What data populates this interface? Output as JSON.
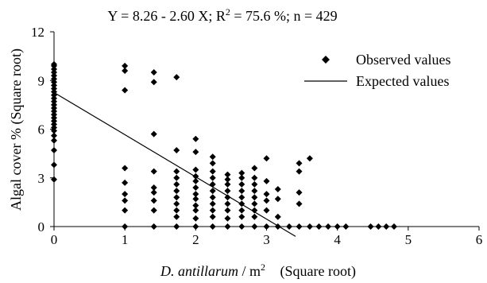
{
  "chart_data": {
    "type": "scatter",
    "title_parts": {
      "pre": "Y = 8.26 - 2.60 X; R",
      "sup": "2",
      "post": " = 75.6 %; n = 429"
    },
    "xlabel_parts": {
      "italic": "D. antillarum",
      "pre": " / m",
      "sup": "2",
      "post": " \u0000(Square root)\u0000"
    },
    "ylabel": "Algal cover % (Square root)",
    "xlim": [
      0,
      6
    ],
    "ylim": [
      0,
      12
    ],
    "xticks": [
      "0",
      "1",
      "2",
      "3",
      "4",
      "5",
      "6"
    ],
    "yticks": [
      "0",
      "3",
      "6",
      "9",
      "12"
    ],
    "series": [
      {
        "name": "Observed values",
        "marker": "diamond",
        "color": "#000000",
        "points": [
          [
            0,
            2.9
          ],
          [
            0,
            3.8
          ],
          [
            0,
            4.7
          ],
          [
            0,
            5.3
          ],
          [
            0,
            5.6
          ],
          [
            0,
            5.9
          ],
          [
            0,
            6.1
          ],
          [
            0,
            6.3
          ],
          [
            0,
            6.5
          ],
          [
            0,
            6.7
          ],
          [
            0,
            6.9
          ],
          [
            0,
            7.1
          ],
          [
            0,
            7.3
          ],
          [
            0,
            7.5
          ],
          [
            0,
            7.7
          ],
          [
            0,
            7.9
          ],
          [
            0,
            8.1
          ],
          [
            0,
            8.3
          ],
          [
            0,
            8.5
          ],
          [
            0,
            8.7
          ],
          [
            0,
            8.9
          ],
          [
            0,
            9.1
          ],
          [
            0,
            9.3
          ],
          [
            0,
            9.5
          ],
          [
            0,
            9.7
          ],
          [
            0,
            9.9
          ],
          [
            0,
            10.0
          ],
          [
            1,
            0.0
          ],
          [
            1,
            1.0
          ],
          [
            1,
            1.6
          ],
          [
            1,
            2.0
          ],
          [
            1,
            2.7
          ],
          [
            1,
            3.6
          ],
          [
            1,
            8.4
          ],
          [
            1,
            9.6
          ],
          [
            1,
            9.9
          ],
          [
            1.41,
            0.0
          ],
          [
            1.41,
            1.0
          ],
          [
            1.41,
            1.6
          ],
          [
            1.41,
            2.1
          ],
          [
            1.41,
            2.4
          ],
          [
            1.41,
            3.4
          ],
          [
            1.41,
            5.7
          ],
          [
            1.41,
            8.9
          ],
          [
            1.41,
            9.5
          ],
          [
            1.73,
            0.0
          ],
          [
            1.73,
            0.6
          ],
          [
            1.73,
            1.0
          ],
          [
            1.73,
            1.4
          ],
          [
            1.73,
            1.8
          ],
          [
            1.73,
            2.2
          ],
          [
            1.73,
            2.6
          ],
          [
            1.73,
            3.0
          ],
          [
            1.73,
            3.4
          ],
          [
            1.73,
            4.7
          ],
          [
            1.73,
            9.2
          ],
          [
            2,
            0.0
          ],
          [
            2,
            0.5
          ],
          [
            2,
            1.0
          ],
          [
            2,
            1.3
          ],
          [
            2,
            1.7
          ],
          [
            2,
            2.0
          ],
          [
            2,
            2.4
          ],
          [
            2,
            2.8
          ],
          [
            2,
            3.1
          ],
          [
            2,
            3.5
          ],
          [
            2,
            4.6
          ],
          [
            2,
            5.4
          ],
          [
            2.24,
            0.0
          ],
          [
            2.24,
            0.6
          ],
          [
            2.24,
            1.0
          ],
          [
            2.24,
            1.4
          ],
          [
            2.24,
            1.8
          ],
          [
            2.24,
            2.2
          ],
          [
            2.24,
            2.6
          ],
          [
            2.24,
            3.0
          ],
          [
            2.24,
            3.4
          ],
          [
            2.24,
            3.9
          ],
          [
            2.24,
            4.3
          ],
          [
            2.45,
            0.0
          ],
          [
            2.45,
            0.5
          ],
          [
            2.45,
            1.0
          ],
          [
            2.45,
            1.4
          ],
          [
            2.45,
            1.8
          ],
          [
            2.45,
            2.2
          ],
          [
            2.45,
            2.6
          ],
          [
            2.45,
            2.9
          ],
          [
            2.45,
            3.2
          ],
          [
            2.65,
            0.0
          ],
          [
            2.65,
            0.6
          ],
          [
            2.65,
            1.0
          ],
          [
            2.65,
            1.4
          ],
          [
            2.65,
            1.8
          ],
          [
            2.65,
            2.2
          ],
          [
            2.65,
            2.6
          ],
          [
            2.65,
            3.0
          ],
          [
            2.65,
            3.3
          ],
          [
            2.83,
            0.0
          ],
          [
            2.83,
            0.6
          ],
          [
            2.83,
            1.0
          ],
          [
            2.83,
            1.4
          ],
          [
            2.83,
            1.8
          ],
          [
            2.83,
            2.2
          ],
          [
            2.83,
            2.6
          ],
          [
            2.83,
            3.0
          ],
          [
            2.83,
            3.6
          ],
          [
            3,
            0.0
          ],
          [
            3,
            1.0
          ],
          [
            3,
            1.6
          ],
          [
            3,
            2.0
          ],
          [
            3,
            2.8
          ],
          [
            3,
            4.2
          ],
          [
            3.16,
            0.0
          ],
          [
            3.16,
            0.6
          ],
          [
            3.16,
            1.7
          ],
          [
            3.16,
            2.3
          ],
          [
            3.32,
            0.0
          ],
          [
            3.46,
            0.0
          ],
          [
            3.46,
            1.4
          ],
          [
            3.46,
            2.1
          ],
          [
            3.46,
            3.4
          ],
          [
            3.46,
            3.9
          ],
          [
            3.61,
            0.0
          ],
          [
            3.61,
            4.2
          ],
          [
            3.74,
            0.0
          ],
          [
            3.87,
            0.0
          ],
          [
            4,
            0.0
          ],
          [
            4.12,
            0.0
          ],
          [
            4.47,
            0.0
          ],
          [
            4.58,
            0.0
          ],
          [
            4.69,
            0.0
          ],
          [
            4.8,
            0.0
          ]
        ]
      },
      {
        "name": "Expected values",
        "type": "line",
        "color": "#000000",
        "intercept": 8.26,
        "slope": -2.6,
        "x_range": [
          0,
          3.41
        ]
      }
    ],
    "grid": false,
    "legend_position": "top-right"
  }
}
